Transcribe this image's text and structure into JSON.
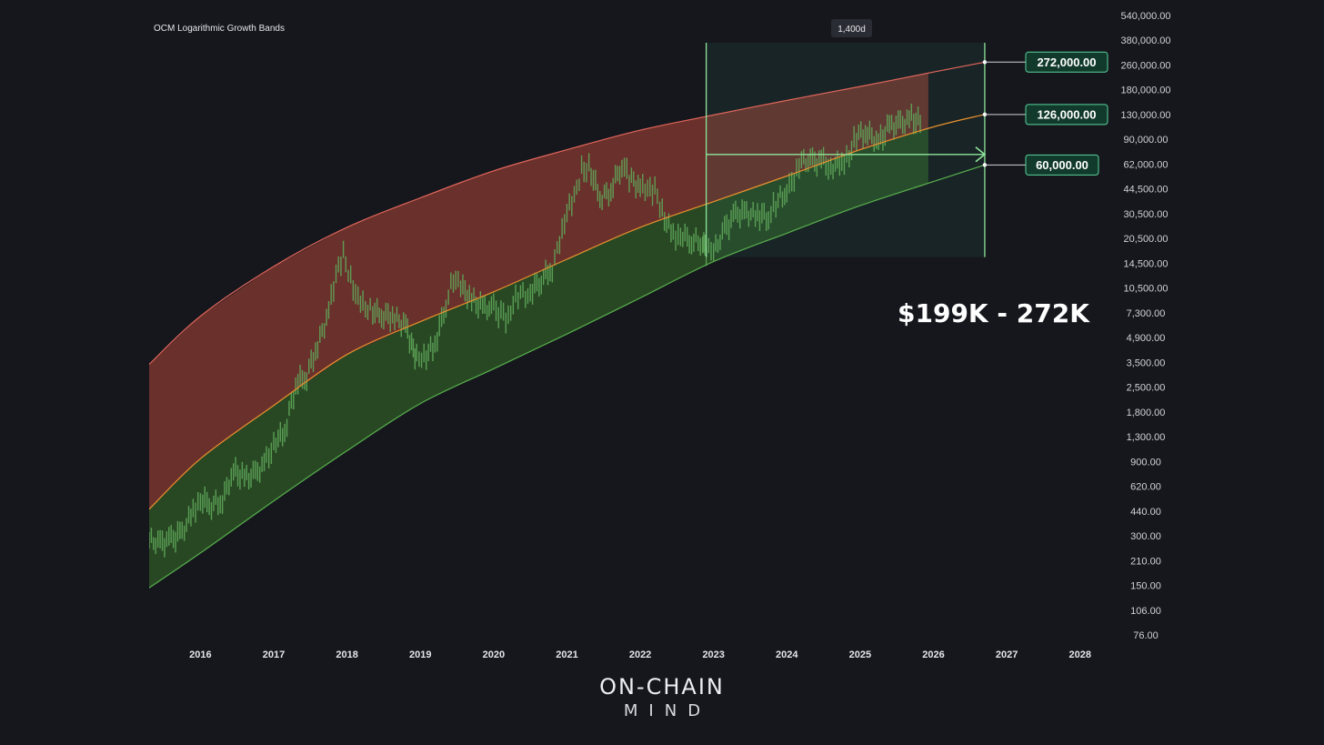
{
  "chart_data": {
    "type": "line",
    "title": "OCM Logarithmic Growth Bands",
    "y_scale": "log",
    "ylim": [
      60,
      540000
    ],
    "xlim": [
      2015.3,
      2028.45
    ],
    "y_tick_labels": [
      "540,000.00",
      "380,000.00",
      "260,000.00",
      "180,000.00",
      "130,000.00",
      "90,000.00",
      "62,000.00",
      "44,500.00",
      "30,500.00",
      "20,500.00",
      "14,500.00",
      "10,500.00",
      "7,300.00",
      "4,900.00",
      "3,500.00",
      "2,500.00",
      "1,800.00",
      "1,300.00",
      "900.00",
      "620.00",
      "440.00",
      "300.00",
      "210.00",
      "150.00",
      "106.00",
      "76.00"
    ],
    "x_tick_labels": [
      "2016",
      "2017",
      "2018",
      "2019",
      "2020",
      "2021",
      "2022",
      "2023",
      "2024",
      "2025",
      "2026",
      "2027",
      "2028"
    ],
    "colors": {
      "upper_band": "#e2675c",
      "middle_band": "#e8922e",
      "lower_band": "#57b04c",
      "upper_fill": "#8a3a31",
      "lower_fill": "#2f5c27",
      "candles": "#5fa85a",
      "annotation": "#8ee59a",
      "pill_fill": "#123a2c",
      "pill_border": "#58d39a",
      "background": "#16171d"
    },
    "series": [
      {
        "name": "upper",
        "x": [
          2015.3,
          2016.0,
          2017.0,
          2018.0,
          2019.0,
          2020.0,
          2021.0,
          2022.0,
          2023.0,
          2024.0,
          2025.0,
          2026.0,
          2026.7
        ],
        "y": [
          3200,
          6500,
          13500,
          24000,
          37000,
          55000,
          75000,
          100000,
          125000,
          155000,
          190000,
          235000,
          272000
        ]
      },
      {
        "name": "middle",
        "x": [
          2015.3,
          2016.0,
          2017.0,
          2018.0,
          2019.0,
          2020.0,
          2021.0,
          2022.0,
          2023.0,
          2024.0,
          2025.0,
          2026.0,
          2026.7
        ],
        "y": [
          380,
          800,
          1750,
          3700,
          6000,
          9300,
          15000,
          24000,
          35000,
          51000,
          75000,
          105000,
          126000
        ]
      },
      {
        "name": "lower",
        "x": [
          2015.3,
          2016.0,
          2017.0,
          2018.0,
          2019.0,
          2020.0,
          2021.0,
          2022.0,
          2023.0,
          2024.0,
          2025.0,
          2026.0,
          2026.7
        ],
        "y": [
          120,
          200,
          430,
          900,
          1800,
          3000,
          5000,
          8500,
          14500,
          22000,
          33000,
          47000,
          60000
        ]
      },
      {
        "name": "price",
        "x": [
          2015.3,
          2015.45,
          2015.6,
          2015.75,
          2015.9,
          2016.0,
          2016.15,
          2016.3,
          2016.45,
          2016.6,
          2016.75,
          2016.9,
          2017.0,
          2017.15,
          2017.3,
          2017.45,
          2017.6,
          2017.75,
          2017.85,
          2017.95,
          2018.05,
          2018.15,
          2018.25,
          2018.35,
          2018.5,
          2018.65,
          2018.8,
          2018.88,
          2018.95,
          2019.05,
          2019.2,
          2019.35,
          2019.45,
          2019.55,
          2019.7,
          2019.85,
          2020.0,
          2020.2,
          2020.3,
          2020.5,
          2020.65,
          2020.8,
          2020.9,
          2021.0,
          2021.1,
          2021.2,
          2021.3,
          2021.45,
          2021.6,
          2021.75,
          2021.85,
          2022.0,
          2022.1,
          2022.2,
          2022.3,
          2022.45,
          2022.55,
          2022.7,
          2022.85,
          2022.9,
          2023.0,
          2023.15,
          2023.3,
          2023.45,
          2023.6,
          2023.75,
          2023.85,
          2024.0,
          2024.1,
          2024.2,
          2024.35,
          2024.5,
          2024.6,
          2024.75,
          2024.85,
          2024.95,
          2025.1,
          2025.25,
          2025.4,
          2025.55,
          2025.7,
          2025.85
        ],
        "y": [
          250,
          230,
          240,
          270,
          380,
          430,
          410,
          440,
          660,
          600,
          640,
          760,
          1000,
          1200,
          2400,
          2700,
          4300,
          7000,
          11500,
          16500,
          11000,
          8500,
          7700,
          7000,
          6500,
          6400,
          5700,
          4100,
          3600,
          3600,
          4200,
          7800,
          11500,
          10000,
          8200,
          7500,
          7200,
          6200,
          9000,
          9200,
          11000,
          13500,
          19000,
          29000,
          38000,
          55000,
          58000,
          37000,
          42000,
          60000,
          50000,
          44000,
          40000,
          42000,
          30000,
          21000,
          21500,
          20000,
          19500,
          16500,
          17000,
          23000,
          28500,
          30000,
          29000,
          27500,
          35000,
          42000,
          47000,
          65000,
          63000,
          62000,
          58000,
          64000,
          68000,
          93000,
          98000,
          82000,
          105000,
          110000,
          118000,
          108000
        ]
      }
    ],
    "annotations": {
      "duration_label": "1,400d",
      "price_labels": [
        "272,000.00",
        "126,000.00",
        "60,000.00"
      ],
      "price_label_values": [
        272000,
        126000,
        60000
      ],
      "projection_start_x": 2022.9,
      "projection_end_x": 2026.7,
      "projection_arrow_y": 70000,
      "box_bottom_y": 15500,
      "box_top_y": 540000,
      "range_text": "$199K - 272K"
    }
  },
  "branding": {
    "line1": "ON-CHAIN",
    "line2": "MIND"
  }
}
